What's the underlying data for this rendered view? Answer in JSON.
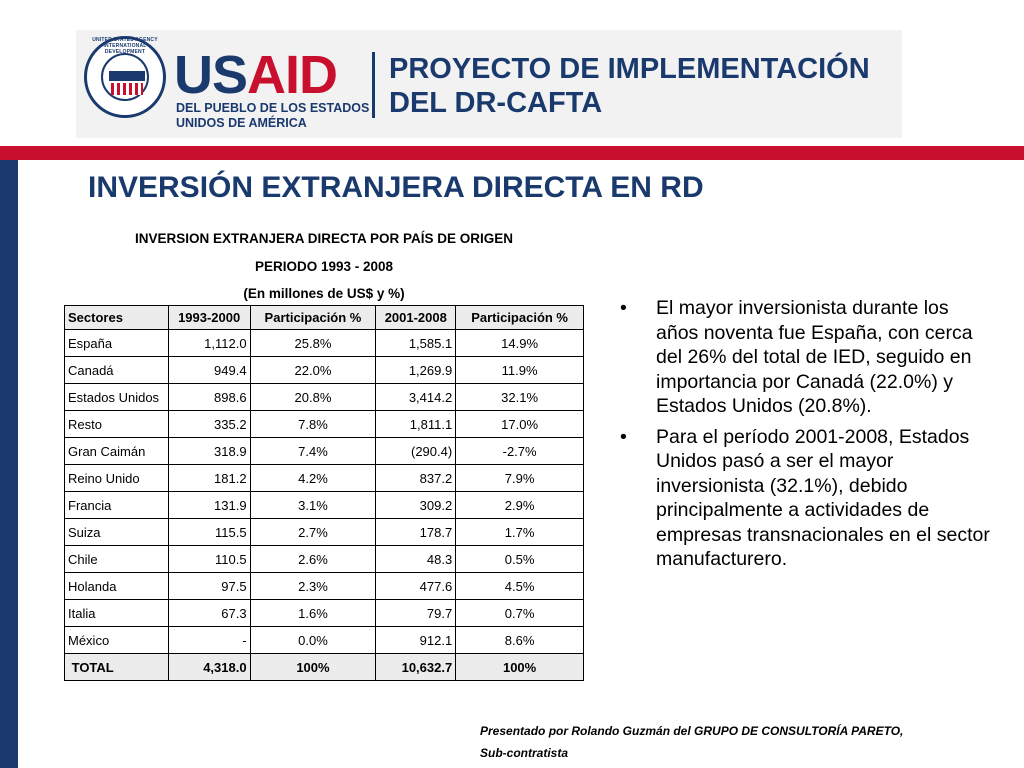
{
  "logo": {
    "seal_label": "UNITED STATES AGENCY INTERNATIONAL DEVELOPMENT",
    "seal_text": "USAID",
    "brand": "USAID",
    "brand_line1": "DEL PUEBLO DE LOS ESTADOS",
    "brand_line2": "UNIDOS DE AMÉRICA",
    "project_line1": "PROYECTO DE IMPLEMENTACIÓN",
    "project_line2": "DEL DR-CAFTA"
  },
  "slide_title": "INVERSIÓN EXTRANJERA DIRECTA EN RD",
  "table_caption": {
    "line1": "INVERSION EXTRANJERA DIRECTA POR PAÍS DE ORIGEN",
    "line2": "PERIODO 1993 - 2008",
    "line3": "(En millones de US$ y %)"
  },
  "table": {
    "headers": [
      "Sectores",
      "1993-2000",
      "Participación %",
      "2001-2008",
      "Participación %"
    ],
    "rows": [
      [
        "España",
        "1,112.0",
        "25.8%",
        "1,585.1",
        "14.9%"
      ],
      [
        "Canadá",
        "949.4",
        "22.0%",
        "1,269.9",
        "11.9%"
      ],
      [
        "Estados Unidos",
        "898.6",
        "20.8%",
        "3,414.2",
        "32.1%"
      ],
      [
        "Resto",
        "335.2",
        "7.8%",
        "1,811.1",
        "17.0%"
      ],
      [
        "Gran Caimán",
        "318.9",
        "7.4%",
        "(290.4)",
        "-2.7%"
      ],
      [
        "Reino Unido",
        "181.2",
        "4.2%",
        "837.2",
        "7.9%"
      ],
      [
        "Francia",
        "131.9",
        "3.1%",
        "309.2",
        "2.9%"
      ],
      [
        "Suiza",
        "115.5",
        "2.7%",
        "178.7",
        "1.7%"
      ],
      [
        "Chile",
        "110.5",
        "2.6%",
        "48.3",
        "0.5%"
      ],
      [
        "Holanda",
        "97.5",
        "2.3%",
        "477.6",
        "4.5%"
      ],
      [
        "Italia",
        "67.3",
        "1.6%",
        "79.7",
        "0.7%"
      ],
      [
        "México",
        "-",
        "0.0%",
        "912.1",
        "8.6%"
      ]
    ],
    "total": [
      " TOTAL",
      "4,318.0",
      "100%",
      "10,632.7",
      "100%"
    ]
  },
  "bullets": [
    {
      "marker": "•",
      "text": "El mayor inversionista durante los años noventa fue España, con cerca del 26% del total de IED, seguido en importancia por Canadá (22.0%) y Estados Unidos (20.8%)."
    },
    {
      "marker": "•",
      "text": "Para el período 2001-2008, Estados Unidos pasó a ser el mayor inversionista (32.1%), debido principalmente a actividades de empresas transnacionales en el sector manufacturero."
    }
  ],
  "credits": {
    "line1": "Presentado por Rolando Guzmán del GRUPO DE CONSULTORÍA PARETO,",
    "line2": "Sub-contratista"
  },
  "colors": {
    "navy": "#1a3a6e",
    "red": "#c8102e"
  }
}
